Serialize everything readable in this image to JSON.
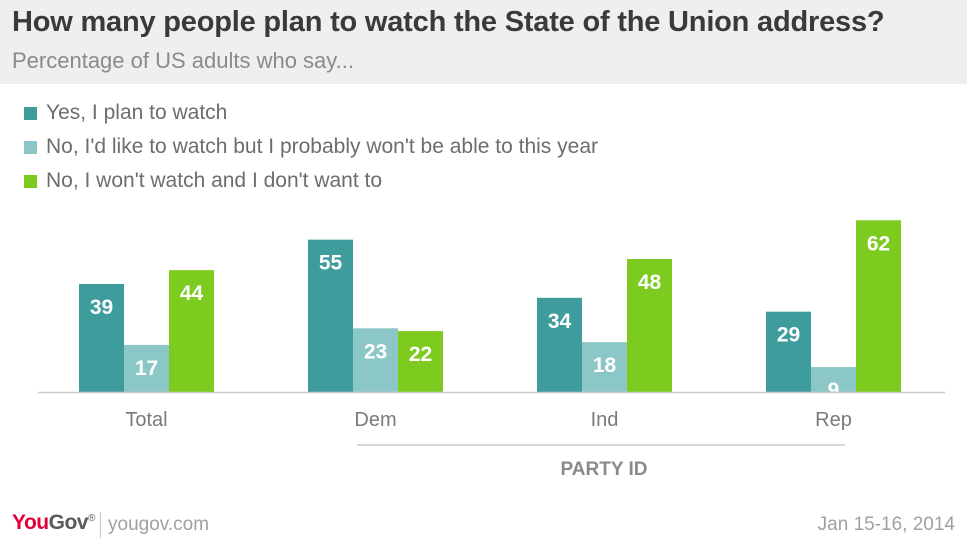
{
  "header": {
    "title": "How many people plan to watch the State of the Union address?",
    "subtitle": "Percentage of US adults who say..."
  },
  "footer": {
    "brand_you": "You",
    "brand_gov": "Gov",
    "brand_mark": "®",
    "site": "yougov.com",
    "date": "Jan 15-16, 2014"
  },
  "chart_data": {
    "type": "bar",
    "categories": [
      "Total",
      "Dem",
      "Ind",
      "Rep"
    ],
    "group_label": "PARTY ID",
    "series": [
      {
        "name": "Yes, I plan to watch",
        "values": [
          39,
          55,
          34,
          29
        ],
        "color": "#3f9c9c"
      },
      {
        "name": "No, I'd like to watch but I probably won't be able to this year",
        "values": [
          17,
          23,
          18,
          9
        ],
        "color": "#8cc7c7"
      },
      {
        "name": "No, I won't watch and I don't want to",
        "values": [
          44,
          22,
          48,
          62
        ],
        "color": "#7ecb20"
      }
    ],
    "ylim": [
      0,
      62
    ]
  }
}
